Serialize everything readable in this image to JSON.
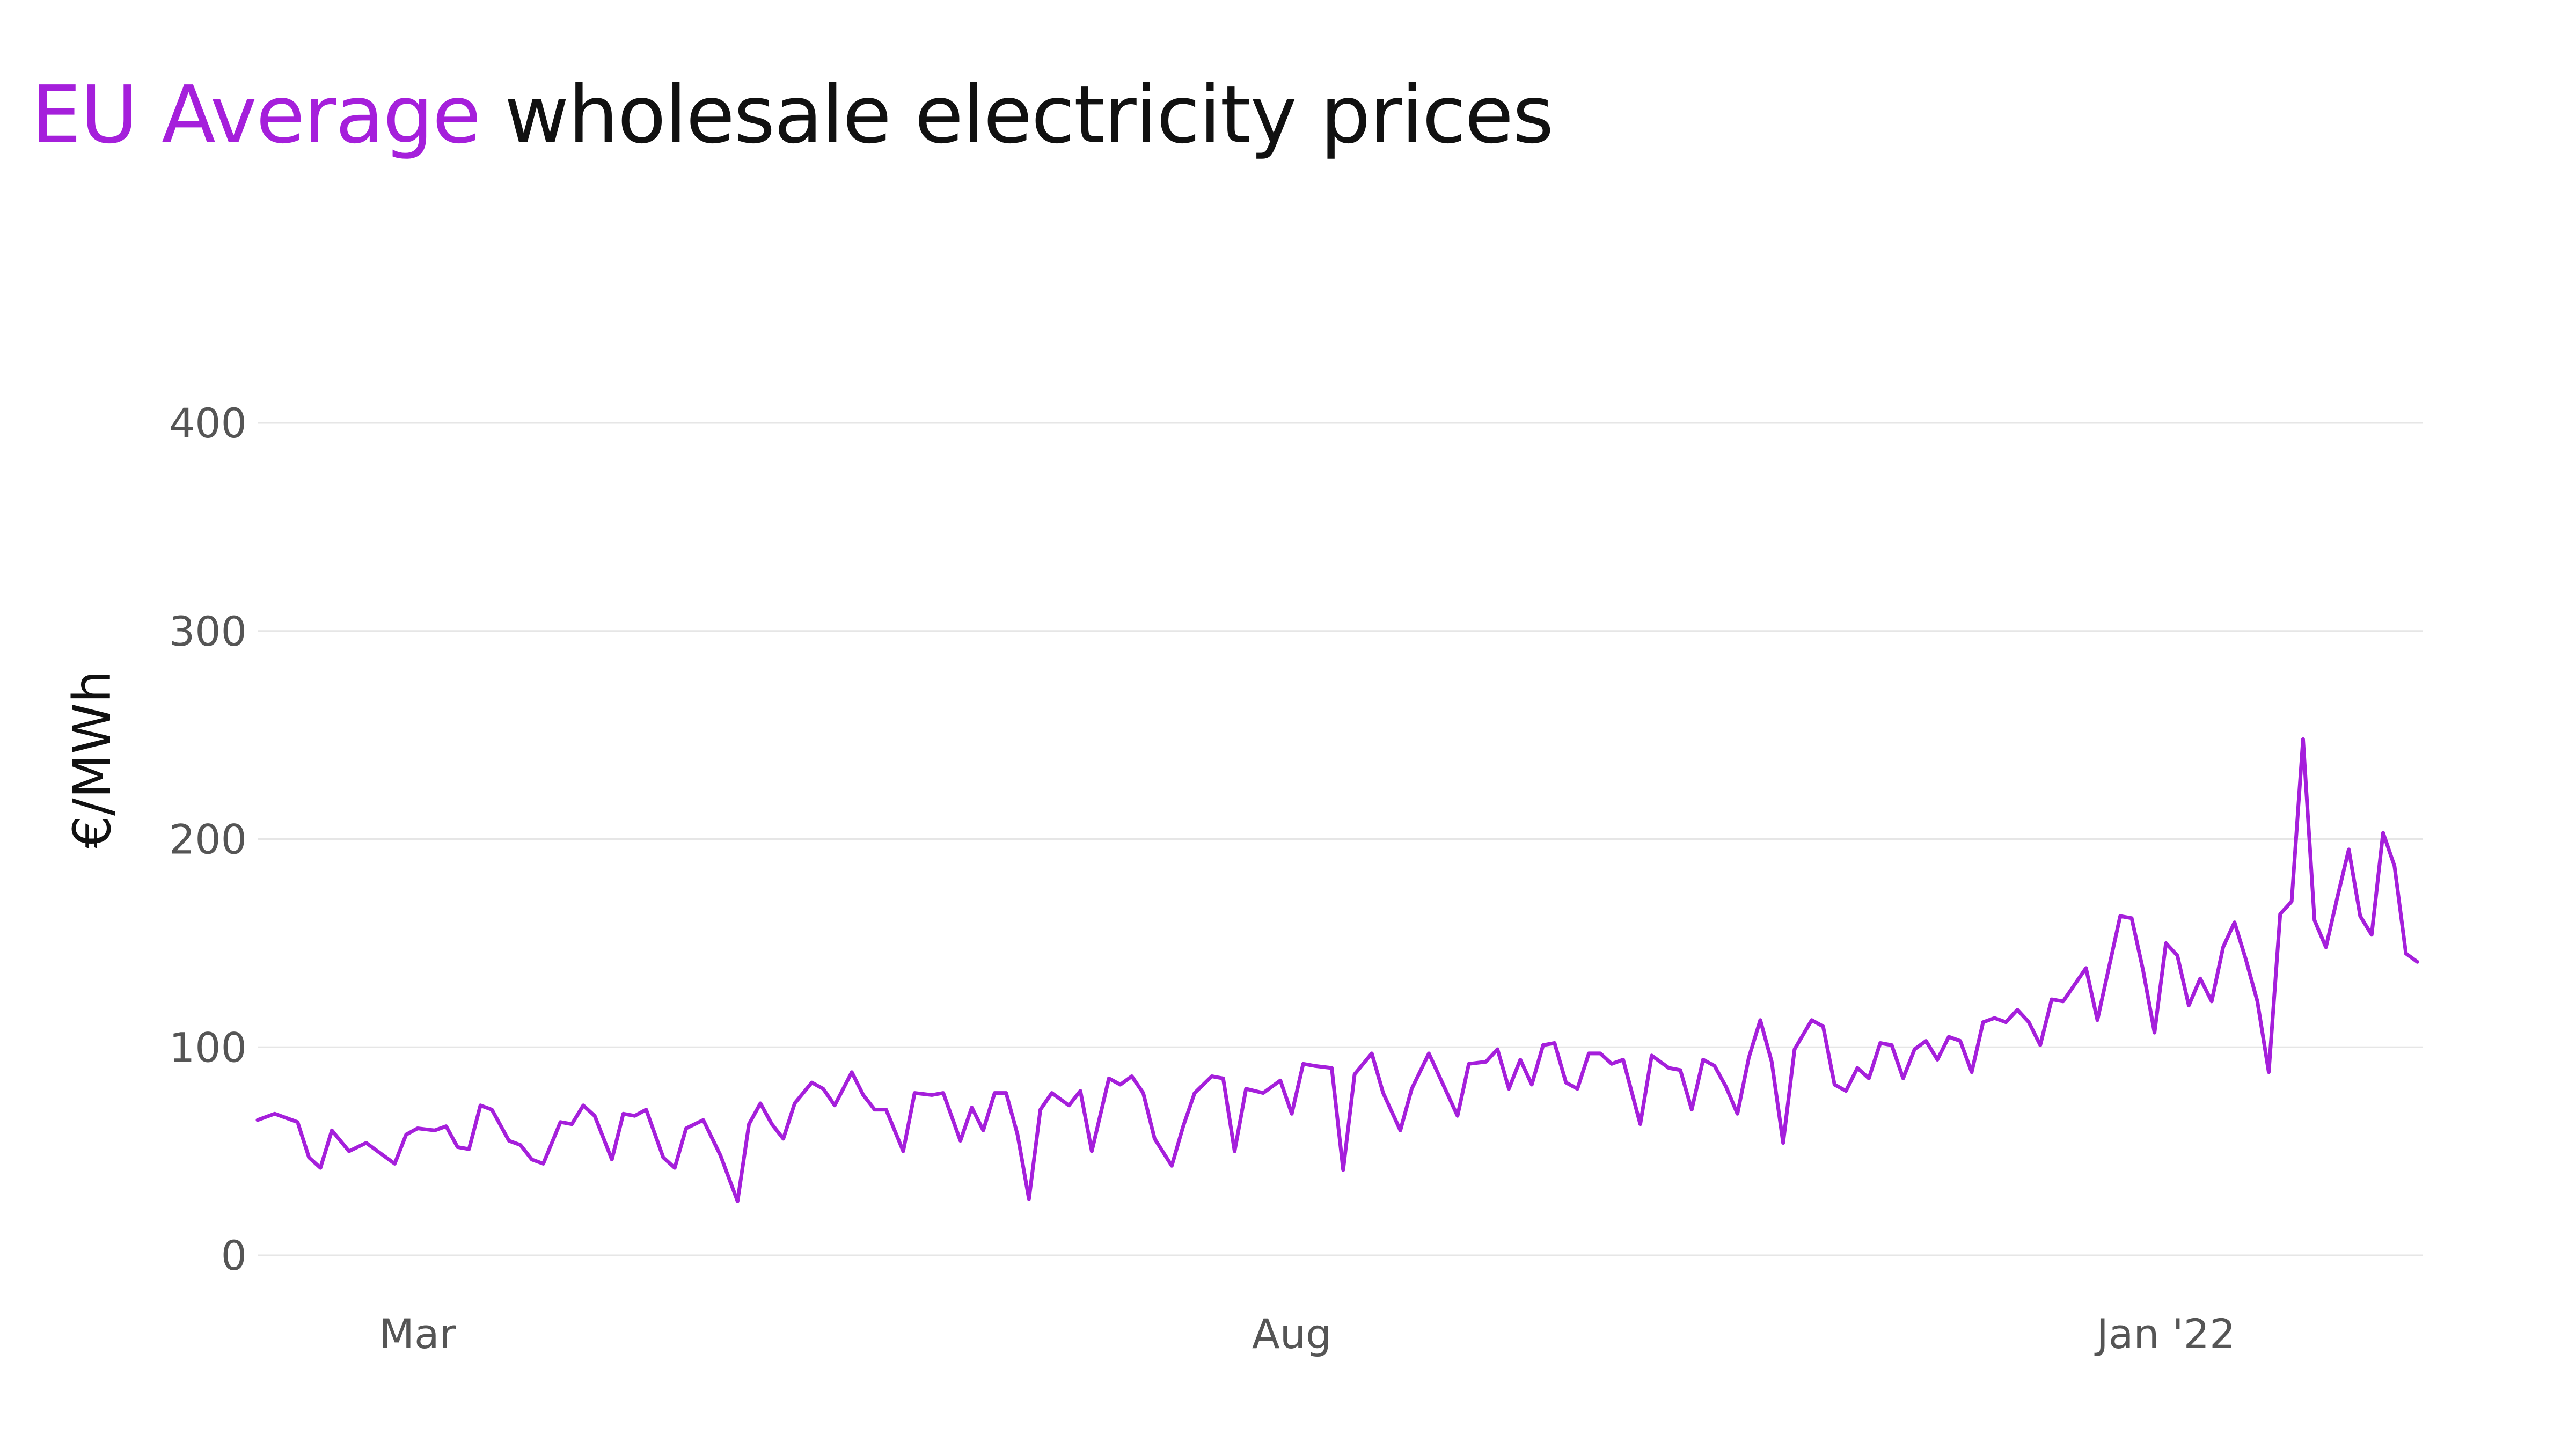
{
  "title": {
    "highlight": "EU Average",
    "rest": " wholesale electricity prices"
  },
  "colors": {
    "accent": "#a51fdb",
    "text": "#111111",
    "tick": "#555555",
    "grid": "#e6e6e6"
  },
  "chart_data": {
    "type": "line",
    "title": "EU Average wholesale electricity prices",
    "xlabel": "",
    "ylabel": "€/MWh",
    "ylim": [
      0,
      400
    ],
    "yticks": [
      0,
      100,
      200,
      300,
      400
    ],
    "xticks": [
      {
        "label": "Mar",
        "date": "2021-03-01"
      },
      {
        "label": "Aug",
        "date": "2021-08-01"
      },
      {
        "label": "Jan '22",
        "date": "2022-01-01"
      }
    ],
    "xlim": [
      "2021-02-01",
      "2022-02-15"
    ],
    "grid": "horizontal",
    "legend": "none",
    "series": [
      {
        "color": "#a51fdb",
        "points": [
          [
            "2021-02-01",
            65
          ],
          [
            "2021-02-04",
            68
          ],
          [
            "2021-02-08",
            64
          ],
          [
            "2021-02-10",
            47
          ],
          [
            "2021-02-12",
            42
          ],
          [
            "2021-02-14",
            60
          ],
          [
            "2021-02-17",
            50
          ],
          [
            "2021-02-20",
            54
          ],
          [
            "2021-02-23",
            48
          ],
          [
            "2021-02-25",
            44
          ],
          [
            "2021-02-27",
            58
          ],
          [
            "2021-03-01",
            61
          ],
          [
            "2021-03-04",
            60
          ],
          [
            "2021-03-06",
            62
          ],
          [
            "2021-03-08",
            52
          ],
          [
            "2021-03-10",
            51
          ],
          [
            "2021-03-12",
            72
          ],
          [
            "2021-03-14",
            70
          ],
          [
            "2021-03-17",
            55
          ],
          [
            "2021-03-19",
            53
          ],
          [
            "2021-03-21",
            46
          ],
          [
            "2021-03-23",
            44
          ],
          [
            "2021-03-26",
            64
          ],
          [
            "2021-03-28",
            63
          ],
          [
            "2021-03-30",
            72
          ],
          [
            "2021-04-01",
            67
          ],
          [
            "2021-04-04",
            46
          ],
          [
            "2021-04-06",
            68
          ],
          [
            "2021-04-08",
            67
          ],
          [
            "2021-04-10",
            70
          ],
          [
            "2021-04-13",
            47
          ],
          [
            "2021-04-15",
            42
          ],
          [
            "2021-04-17",
            61
          ],
          [
            "2021-04-20",
            65
          ],
          [
            "2021-04-23",
            48
          ],
          [
            "2021-04-26",
            26
          ],
          [
            "2021-04-28",
            63
          ],
          [
            "2021-04-30",
            73
          ],
          [
            "2021-05-02",
            63
          ],
          [
            "2021-05-04",
            56
          ],
          [
            "2021-05-06",
            73
          ],
          [
            "2021-05-09",
            83
          ],
          [
            "2021-05-11",
            80
          ],
          [
            "2021-05-13",
            72
          ],
          [
            "2021-05-16",
            88
          ],
          [
            "2021-05-18",
            77
          ],
          [
            "2021-05-20",
            70
          ],
          [
            "2021-05-22",
            70
          ],
          [
            "2021-05-25",
            50
          ],
          [
            "2021-05-27",
            78
          ],
          [
            "2021-05-30",
            77
          ],
          [
            "2021-06-01",
            78
          ],
          [
            "2021-06-04",
            55
          ],
          [
            "2021-06-06",
            71
          ],
          [
            "2021-06-08",
            60
          ],
          [
            "2021-06-10",
            78
          ],
          [
            "2021-06-12",
            78
          ],
          [
            "2021-06-14",
            58
          ],
          [
            "2021-06-16",
            27
          ],
          [
            "2021-06-18",
            70
          ],
          [
            "2021-06-20",
            78
          ],
          [
            "2021-06-23",
            72
          ],
          [
            "2021-06-25",
            79
          ],
          [
            "2021-06-27",
            50
          ],
          [
            "2021-06-30",
            85
          ],
          [
            "2021-07-02",
            82
          ],
          [
            "2021-07-04",
            86
          ],
          [
            "2021-07-06",
            78
          ],
          [
            "2021-07-08",
            56
          ],
          [
            "2021-07-11",
            43
          ],
          [
            "2021-07-13",
            62
          ],
          [
            "2021-07-15",
            78
          ],
          [
            "2021-07-18",
            86
          ],
          [
            "2021-07-20",
            85
          ],
          [
            "2021-07-22",
            50
          ],
          [
            "2021-07-24",
            80
          ],
          [
            "2021-07-27",
            78
          ],
          [
            "2021-07-30",
            84
          ],
          [
            "2021-08-01",
            68
          ],
          [
            "2021-08-03",
            92
          ],
          [
            "2021-08-05",
            91
          ],
          [
            "2021-08-08",
            90
          ],
          [
            "2021-08-10",
            41
          ],
          [
            "2021-08-12",
            87
          ],
          [
            "2021-08-15",
            97
          ],
          [
            "2021-08-17",
            78
          ],
          [
            "2021-08-20",
            60
          ],
          [
            "2021-08-22",
            80
          ],
          [
            "2021-08-25",
            97
          ],
          [
            "2021-08-27",
            85
          ],
          [
            "2021-08-30",
            67
          ],
          [
            "2021-09-01",
            92
          ],
          [
            "2021-09-04",
            93
          ],
          [
            "2021-09-06",
            99
          ],
          [
            "2021-09-08",
            80
          ],
          [
            "2021-09-10",
            94
          ],
          [
            "2021-09-12",
            82
          ],
          [
            "2021-09-14",
            101
          ],
          [
            "2021-09-16",
            102
          ],
          [
            "2021-09-18",
            83
          ],
          [
            "2021-09-20",
            80
          ],
          [
            "2021-09-22",
            97
          ],
          [
            "2021-09-24",
            97
          ],
          [
            "2021-09-26",
            92
          ],
          [
            "2021-09-28",
            94
          ],
          [
            "2021-10-01",
            63
          ],
          [
            "2021-10-03",
            96
          ],
          [
            "2021-10-06",
            90
          ],
          [
            "2021-10-08",
            89
          ],
          [
            "2021-10-10",
            70
          ],
          [
            "2021-10-12",
            94
          ],
          [
            "2021-10-14",
            91
          ],
          [
            "2021-10-16",
            81
          ],
          [
            "2021-10-18",
            68
          ],
          [
            "2021-10-20",
            95
          ],
          [
            "2021-10-22",
            113
          ],
          [
            "2021-10-24",
            93
          ],
          [
            "2021-10-26",
            54
          ],
          [
            "2021-10-28",
            99
          ],
          [
            "2021-10-31",
            113
          ],
          [
            "2021-11-02",
            110
          ],
          [
            "2021-11-04",
            82
          ],
          [
            "2021-11-06",
            79
          ],
          [
            "2021-11-08",
            90
          ],
          [
            "2021-11-10",
            85
          ],
          [
            "2021-11-12",
            102
          ],
          [
            "2021-11-14",
            101
          ],
          [
            "2021-11-16",
            85
          ],
          [
            "2021-11-18",
            99
          ],
          [
            "2021-11-20",
            103
          ],
          [
            "2021-11-22",
            94
          ],
          [
            "2021-11-24",
            105
          ],
          [
            "2021-11-26",
            103
          ],
          [
            "2021-11-28",
            88
          ],
          [
            "2021-11-30",
            112
          ],
          [
            "2021-12-02",
            114
          ],
          [
            "2021-12-04",
            112
          ],
          [
            "2021-12-06",
            118
          ],
          [
            "2021-12-08",
            112
          ],
          [
            "2021-12-10",
            101
          ],
          [
            "2021-12-12",
            123
          ],
          [
            "2021-12-14",
            122
          ],
          [
            "2021-12-16",
            130
          ],
          [
            "2021-12-18",
            138
          ],
          [
            "2021-12-20",
            113
          ],
          [
            "2021-12-22",
            138
          ],
          [
            "2021-12-24",
            163
          ],
          [
            "2021-12-26",
            162
          ],
          [
            "2021-12-28",
            137
          ],
          [
            "2021-12-30",
            107
          ],
          [
            "2022-01-01",
            150
          ],
          [
            "2022-01-03",
            144
          ],
          [
            "2022-01-05",
            120
          ],
          [
            "2022-01-07",
            133
          ],
          [
            "2022-01-09",
            122
          ],
          [
            "2022-01-11",
            148
          ],
          [
            "2022-01-13",
            160
          ],
          [
            "2022-01-15",
            142
          ],
          [
            "2022-01-17",
            122
          ],
          [
            "2022-01-19",
            88
          ],
          [
            "2022-01-21",
            164
          ],
          [
            "2022-01-23",
            170
          ],
          [
            "2022-01-25",
            248
          ],
          [
            "2022-01-27",
            161
          ],
          [
            "2022-01-29",
            148
          ],
          [
            "2022-01-31",
            172
          ],
          [
            "2022-02-02",
            195
          ],
          [
            "2022-02-04",
            163
          ],
          [
            "2022-02-06",
            154
          ],
          [
            "2022-02-08",
            203
          ],
          [
            "2022-02-10",
            187
          ],
          [
            "2022-02-12",
            145
          ],
          [
            "2022-02-14",
            141
          ]
        ]
      }
    ]
  }
}
